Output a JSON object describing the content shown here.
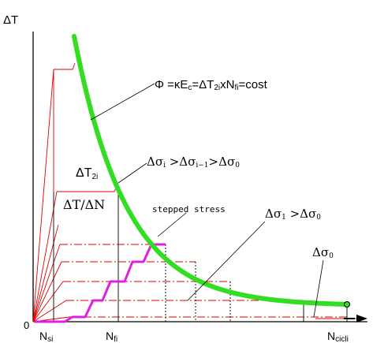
{
  "axes": {
    "y_label": "ΔT",
    "origin_label": "0",
    "x_label_main": "N",
    "x_label_sub": "cicli"
  },
  "x_ticks": [
    {
      "main": "N",
      "sub": "si"
    },
    {
      "main": "N",
      "sub": "fi"
    }
  ],
  "labels": {
    "curve_equation": "Φ =κE",
    "curve_eq_sub_c": "c",
    "curve_eq_mid": "=ΔT",
    "curve_eq_sub_2i": "2i",
    "curve_eq_x": "xN",
    "curve_eq_sub_fi": "fi",
    "curve_eq_end": "=cost",
    "delta_t2i_main": "ΔT",
    "delta_t2i_sub": "2i",
    "delta_t_dn": "ΔT/ΔN",
    "stepped_stress": "stepped stress",
    "sigma_chain": "Δσ",
    "sigma_chain_sub1": "i",
    "sigma_chain_mid1": " >Δσ",
    "sigma_chain_sub2": "i−1",
    "sigma_chain_mid2": ">Δσ",
    "sigma_chain_sub3": "0",
    "sigma_compare": "Δσ",
    "sigma_compare_sub1": "1",
    "sigma_compare_mid": " >Δσ",
    "sigma_compare_sub2": "0",
    "sigma_zero": "Δσ",
    "sigma_zero_sub": "0"
  },
  "colors": {
    "curve": "#33dd22",
    "stepped": "#e020e0",
    "construction": "#dd0000",
    "axes": "#000000"
  }
}
